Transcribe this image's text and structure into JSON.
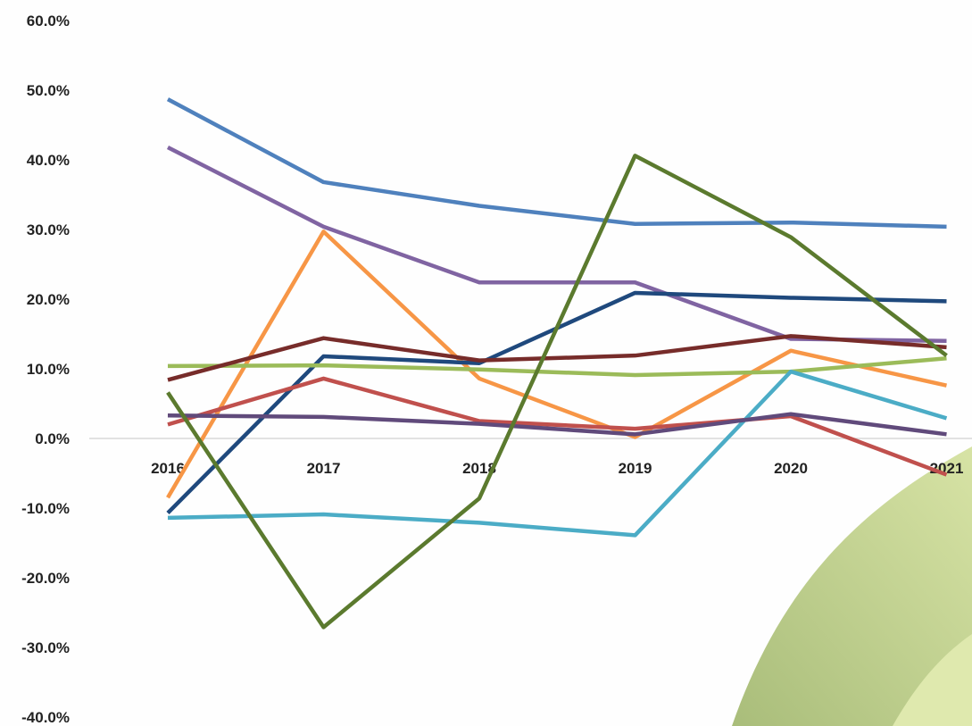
{
  "chart_data": {
    "type": "line",
    "categories": [
      "2016",
      "2017",
      "2018",
      "2019",
      "2020",
      "2021"
    ],
    "ylim": [
      -40,
      60
    ],
    "y_ticks": [
      "60.0%",
      "50.0%",
      "40.0%",
      "30.0%",
      "20.0%",
      "10.0%",
      "0.0%",
      "-10.0%",
      "-20.0%",
      "-30.0%",
      "-40.0%"
    ],
    "y_tick_values": [
      60,
      50,
      40,
      30,
      20,
      10,
      0,
      -10,
      -20,
      -30,
      -40
    ],
    "grid": false,
    "series": [
      {
        "color": "#4f81bd",
        "values": [
          48.7,
          36.8,
          33.4,
          30.8,
          31.0,
          30.4
        ]
      },
      {
        "color": "#8064a2",
        "values": [
          41.8,
          30.4,
          22.4,
          22.4,
          14.3,
          14.0
        ]
      },
      {
        "color": "#f79646",
        "values": [
          -8.5,
          29.7,
          8.6,
          0.2,
          12.6,
          7.6
        ]
      },
      {
        "color": "#1f497d",
        "values": [
          -10.7,
          11.8,
          10.8,
          20.9,
          20.2,
          19.7
        ]
      },
      {
        "color": "#9bbb59",
        "values": [
          10.4,
          10.5,
          9.9,
          9.1,
          9.6,
          11.5
        ]
      },
      {
        "color": "#772c2a",
        "values": [
          8.4,
          14.4,
          11.2,
          11.9,
          14.7,
          13.1
        ]
      },
      {
        "color": "#c0504d",
        "values": [
          2.0,
          8.6,
          2.5,
          1.4,
          3.2,
          -5.2
        ]
      },
      {
        "color": "#4bacc6",
        "values": [
          -11.4,
          -10.9,
          -12.1,
          -13.9,
          9.6,
          2.9
        ]
      },
      {
        "color": "#604a7b",
        "values": [
          3.3,
          3.1,
          2.1,
          0.6,
          3.5,
          0.6
        ]
      },
      {
        "color": "#5b7a2e",
        "values": [
          6.6,
          -27.1,
          -8.6,
          40.6,
          28.9,
          11.9
        ]
      }
    ]
  }
}
